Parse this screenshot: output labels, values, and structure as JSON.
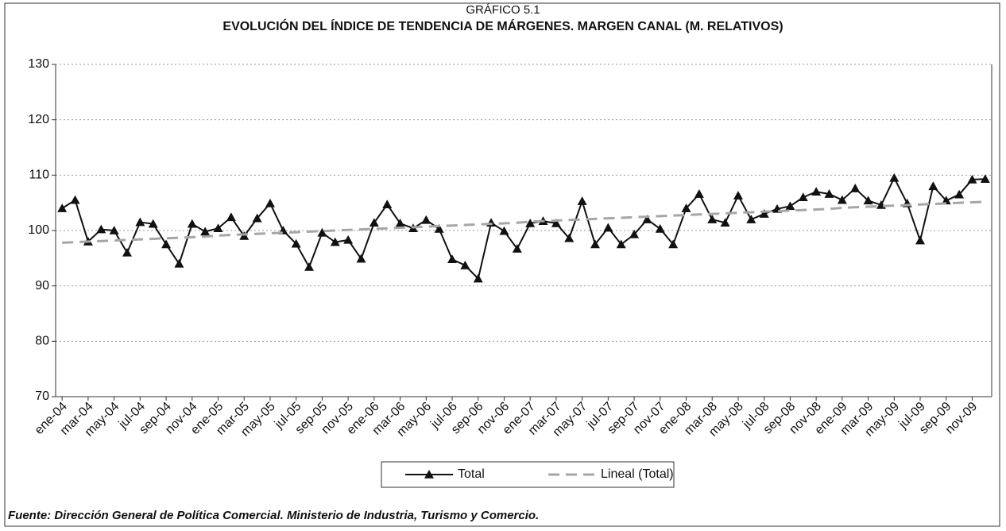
{
  "chart_data": {
    "type": "line",
    "supertitle": "GRÁFICO 5.1",
    "title": "EVOLUCIÓN DEL ÍNDICE DE TENDENCIA DE MÁRGENES. MARGEN CANAL (M. RELATIVOS)",
    "source": "Fuente: Dirección General de Política Comercial. Ministerio de Industria, Turismo y Comercio.",
    "categories": [
      "ene-04",
      null,
      "mar-04",
      null,
      "may-04",
      null,
      "jul-04",
      null,
      "sep-04",
      null,
      "nov-04",
      null,
      "ene-05",
      null,
      "mar-05",
      null,
      "may-05",
      null,
      "jul-05",
      null,
      "sep-05",
      null,
      "nov-05",
      null,
      "ene-06",
      null,
      "mar-06",
      null,
      "may-06",
      null,
      "jul-06",
      null,
      "sep-06",
      null,
      "nov-06",
      null,
      "ene-07",
      null,
      "mar-07",
      null,
      "may-07",
      null,
      "jul-07",
      null,
      "sep-07",
      null,
      "nov-07",
      null,
      "ene-08",
      null,
      "mar-08",
      null,
      "may-08",
      null,
      "jul-08",
      null,
      "sep-08",
      null,
      "nov-08",
      null,
      "ene-09",
      null,
      "mar-09",
      null,
      "may-09",
      null,
      "jul-09",
      null,
      "sep-09",
      null,
      "nov-09",
      null
    ],
    "series": [
      {
        "name": "Total",
        "color": "#111111",
        "marker": "triangle",
        "values": [
          104,
          105.5,
          98,
          100.2,
          100,
          96,
          101.5,
          101.2,
          97.5,
          94,
          101.2,
          99.8,
          100.4,
          102.4,
          99,
          102.2,
          104.9,
          100,
          97.6,
          93.4,
          99.6,
          97.9,
          98.3,
          94.9,
          101.4,
          104.7,
          101.3,
          100.4,
          101.9,
          100.3,
          94.8,
          93.7,
          91.3,
          101.4,
          99.9,
          96.7,
          101.3,
          101.7,
          101.3,
          98.6,
          105.3,
          97.5,
          100.5,
          97.5,
          99.3,
          102,
          100.3,
          97.5,
          104,
          106.6,
          102,
          101.4,
          106.3,
          102,
          103,
          103.9,
          104.4,
          106,
          107,
          106.6,
          105.5,
          107.6,
          105.4,
          104.6,
          109.5,
          104.9,
          98.2,
          108,
          105.4,
          106.5,
          109.2,
          109.3
        ]
      },
      {
        "name": "Lineal (Total)",
        "color": "#a6a6a6",
        "dashed": true,
        "values": [
          97.8,
          97.9,
          98.0,
          98.1,
          98.2,
          98.3,
          98.4,
          98.5,
          98.6,
          98.7,
          98.8,
          98.9,
          99.1,
          99.2,
          99.3,
          99.4,
          99.5,
          99.6,
          99.7,
          99.8,
          99.9,
          100.0,
          100.1,
          100.2,
          100.3,
          100.4,
          100.5,
          100.6,
          100.7,
          100.8,
          100.9,
          101.0,
          101.1,
          101.2,
          101.3,
          101.4,
          101.6,
          101.7,
          101.8,
          101.9,
          102.0,
          102.1,
          102.2,
          102.3,
          102.4,
          102.5,
          102.6,
          102.7,
          102.8,
          102.9,
          103.0,
          103.1,
          103.2,
          103.3,
          103.4,
          103.5,
          103.6,
          103.7,
          103.8,
          103.9,
          104.1,
          104.2,
          104.3,
          104.4,
          104.5,
          104.6,
          104.7,
          104.8,
          104.9,
          105.0,
          105.1,
          105.2
        ]
      }
    ],
    "ylim": [
      70,
      130
    ],
    "yticks": [
      70,
      80,
      90,
      100,
      110,
      120,
      130
    ],
    "grid": true,
    "legend": "bottom"
  }
}
